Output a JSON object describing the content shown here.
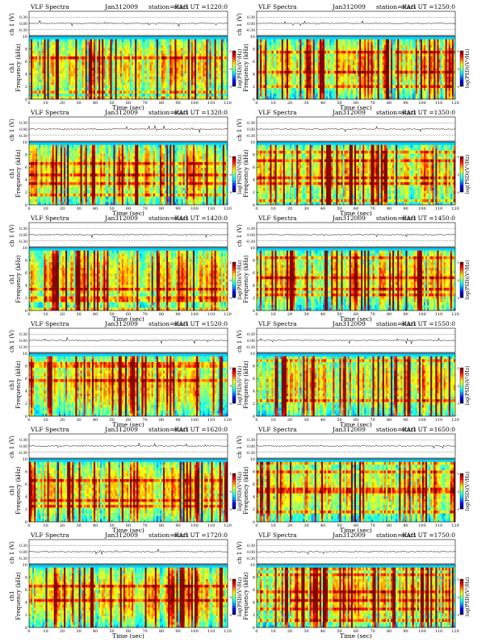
{
  "chart_data": [
    {
      "type": "heatmap",
      "title": "VLF Spectra",
      "date": "Jan312009",
      "station": "station=KAG",
      "start": "start UT =1220:0",
      "ch_label": "ch 1 (V)",
      "ch_ticks": [
        "0.30",
        "0.00",
        "-0.30"
      ],
      "ylabel": "Frequency (kHz)",
      "ch_name": "ch1",
      "yticks": [
        "0",
        "2",
        "4",
        "6",
        "8",
        "10"
      ],
      "xlabel": "Time (sec)",
      "xticks": [
        "0",
        "10",
        "20",
        "30",
        "40",
        "50",
        "60",
        "70",
        "80",
        "90",
        "100",
        "110",
        "120"
      ],
      "colorbar_label": "log(PSD)(V²/Hz)",
      "colorbar_ticks": [
        "-1",
        "-5",
        "-9"
      ]
    },
    {
      "type": "heatmap",
      "title": "VLF Spectra",
      "date": "Jan312009",
      "station": "station=KAG",
      "start": "start UT =1250:0",
      "ch_label": "ch 1 (V)",
      "ch_ticks": [
        "0.30",
        "0.00",
        "-0.30"
      ],
      "ylabel": "Frequency (kHz)",
      "ch_name": "",
      "yticks": [
        "0",
        "2",
        "4",
        "6",
        "8",
        "10"
      ],
      "xlabel": "Time (sec)",
      "xticks": [
        "0",
        "10",
        "20",
        "30",
        "40",
        "50",
        "60",
        "70",
        "80",
        "90",
        "100",
        "110",
        "120"
      ],
      "colorbar_label": "log(PSD)(V²/Hz)",
      "colorbar_ticks": [
        "-1",
        "-5",
        "-9"
      ]
    },
    {
      "type": "heatmap",
      "title": "VLF Spectra",
      "date": "Jan312009",
      "station": "station=KAG",
      "start": "start UT =1320:0",
      "ch_label": "ch 1 (V)",
      "ch_ticks": [
        "0.30",
        "0.00",
        "-0.30"
      ],
      "ylabel": "Frequency (kHz)",
      "ch_name": "ch1",
      "yticks": [
        "0",
        "2",
        "4",
        "6",
        "8",
        "10"
      ],
      "xlabel": "Time (sec)",
      "xticks": [
        "0",
        "10",
        "20",
        "30",
        "40",
        "50",
        "60",
        "70",
        "80",
        "90",
        "100",
        "110",
        "120"
      ],
      "colorbar_label": "log(PSD)(V²/Hz)",
      "colorbar_ticks": [
        "-1",
        "-5",
        "-9"
      ]
    },
    {
      "type": "heatmap",
      "title": "VLF Spectra",
      "date": "Jan312009",
      "station": "station=KAG",
      "start": "start UT =1350:0",
      "ch_label": "ch 1 (V)",
      "ch_ticks": [
        "0.30",
        "0.00",
        "-0.30"
      ],
      "ylabel": "Frequency (kHz)",
      "ch_name": "",
      "yticks": [
        "0",
        "2",
        "4",
        "6",
        "8",
        "10"
      ],
      "xlabel": "Time (sec)",
      "xticks": [
        "0",
        "10",
        "20",
        "30",
        "40",
        "50",
        "60",
        "70",
        "80",
        "90",
        "100",
        "110",
        "120"
      ],
      "colorbar_label": "log(PSD)(V²/Hz)",
      "colorbar_ticks": [
        "-1",
        "-5",
        "-9"
      ]
    },
    {
      "type": "heatmap",
      "title": "VLF Spectra",
      "date": "Jan312009",
      "station": "station=KAG",
      "start": "start UT =1420:0",
      "ch_label": "ch 1 (V)",
      "ch_ticks": [
        "0.30",
        "0.00",
        "-0.30"
      ],
      "ylabel": "Frequency (kHz)",
      "ch_name": "ch1",
      "yticks": [
        "0",
        "2",
        "4",
        "6",
        "8",
        "10"
      ],
      "xlabel": "Time (sec)",
      "xticks": [
        "0",
        "10",
        "20",
        "30",
        "40",
        "50",
        "60",
        "70",
        "80",
        "90",
        "100",
        "110",
        "120"
      ],
      "colorbar_label": "log(PSD)(V²/Hz)",
      "colorbar_ticks": [
        "-1",
        "-5",
        "-9"
      ]
    },
    {
      "type": "heatmap",
      "title": "VLF Spectra",
      "date": "Jan312009",
      "station": "station=KAG",
      "start": "start UT =1450:0",
      "ch_label": "ch 1 (V)",
      "ch_ticks": [
        "0.30",
        "0.00",
        "-0.30"
      ],
      "ylabel": "Frequency (kHz)",
      "ch_name": "",
      "yticks": [
        "0",
        "2",
        "4",
        "6",
        "8",
        "10"
      ],
      "xlabel": "Time (sec)",
      "xticks": [
        "0",
        "10",
        "20",
        "30",
        "40",
        "50",
        "60",
        "70",
        "80",
        "90",
        "100",
        "110",
        "120"
      ],
      "colorbar_label": "log(PSD)(V²/Hz)",
      "colorbar_ticks": [
        "-1",
        "-5",
        "-9"
      ]
    },
    {
      "type": "heatmap",
      "title": "VLF Spectra",
      "date": "Jan312009",
      "station": "station=KAG",
      "start": "start UT =1520:0",
      "ch_label": "ch 1 (V)",
      "ch_ticks": [
        "0.30",
        "0.00",
        "-0.30"
      ],
      "ylabel": "Frequency (kHz)",
      "ch_name": "ch1",
      "yticks": [
        "0",
        "2",
        "4",
        "6",
        "8",
        "10"
      ],
      "xlabel": "Time (sec)",
      "xticks": [
        "0",
        "10",
        "20",
        "30",
        "40",
        "50",
        "60",
        "70",
        "80",
        "90",
        "100",
        "110",
        "120"
      ],
      "colorbar_label": "log(PSD)(V²/Hz)",
      "colorbar_ticks": [
        "-1",
        "-5",
        "-9"
      ]
    },
    {
      "type": "heatmap",
      "title": "VLF Spectra",
      "date": "Jan312009",
      "station": "station=KAG",
      "start": "start UT =1550:0",
      "ch_label": "ch 1 (V)",
      "ch_ticks": [
        "0.30",
        "0.00",
        "-0.30"
      ],
      "ylabel": "Frequency (kHz)",
      "ch_name": "",
      "yticks": [
        "0",
        "2",
        "4",
        "6",
        "8",
        "10"
      ],
      "xlabel": "Time (sec)",
      "xticks": [
        "0",
        "10",
        "20",
        "30",
        "40",
        "50",
        "60",
        "70",
        "80",
        "90",
        "100",
        "110",
        "120"
      ],
      "colorbar_label": "log(PSD)(V²/Hz)",
      "colorbar_ticks": [
        "-1",
        "-5",
        "-9"
      ]
    },
    {
      "type": "heatmap",
      "title": "VLF Spectra",
      "date": "Jan312009",
      "station": "station=KAG",
      "start": "start UT =1620:0",
      "ch_label": "ch 1 (V)",
      "ch_ticks": [
        "0.30",
        "0.00",
        "-0.30"
      ],
      "ylabel": "Frequency (kHz)",
      "ch_name": "ch1",
      "yticks": [
        "0",
        "2",
        "4",
        "6",
        "8",
        "10"
      ],
      "xlabel": "Time (sec)",
      "xticks": [
        "0",
        "10",
        "20",
        "30",
        "40",
        "50",
        "60",
        "70",
        "80",
        "90",
        "100",
        "110",
        "120"
      ],
      "colorbar_label": "log(PSD)(V²/Hz)",
      "colorbar_ticks": [
        "-1",
        "-5",
        "-9"
      ]
    },
    {
      "type": "heatmap",
      "title": "VLF Spectra",
      "date": "Jan312009",
      "station": "station=KAG",
      "start": "start UT =1650:0",
      "ch_label": "ch 1 (V)",
      "ch_ticks": [
        "0.30",
        "0.00",
        "-0.30"
      ],
      "ylabel": "Frequency (kHz)",
      "ch_name": "",
      "yticks": [
        "0",
        "2",
        "4",
        "6",
        "8",
        "10"
      ],
      "xlabel": "Time (sec)",
      "xticks": [
        "0",
        "10",
        "20",
        "30",
        "40",
        "50",
        "60",
        "70",
        "80",
        "90",
        "100",
        "110",
        "120"
      ],
      "colorbar_label": "log(PSD)(V²/Hz)",
      "colorbar_ticks": [
        "-1",
        "-5",
        "-9"
      ]
    },
    {
      "type": "heatmap",
      "title": "VLF Spectra",
      "date": "Jan312009",
      "station": "station=KAG",
      "start": "start UT =1720:0",
      "ch_label": "ch 1 (V)",
      "ch_ticks": [
        "0.30",
        "0.00",
        "-0.30"
      ],
      "ylabel": "Frequency (kHz)",
      "ch_name": "ch1",
      "yticks": [
        "0",
        "2",
        "4",
        "6",
        "8",
        "10"
      ],
      "xlabel": "Time (sec)",
      "xticks": [
        "0",
        "10",
        "20",
        "30",
        "40",
        "50",
        "60",
        "70",
        "80",
        "90",
        "100",
        "110",
        "120"
      ],
      "colorbar_label": "log(PSD)(V²/Hz)",
      "colorbar_ticks": [
        "-1",
        "-5",
        "-9"
      ]
    },
    {
      "type": "heatmap",
      "title": "VLF Spectra",
      "date": "Jan312009",
      "station": "station=KAG",
      "start": "start UT =1750:0",
      "ch_label": "ch 1 (V)",
      "ch_ticks": [
        "0.30",
        "0.00",
        "-0.30"
      ],
      "ylabel": "Frequency (kHz)",
      "ch_name": "",
      "yticks": [
        "0",
        "2",
        "4",
        "6",
        "8",
        "10"
      ],
      "xlabel": "Time (sec)",
      "xticks": [
        "0",
        "10",
        "20",
        "30",
        "40",
        "50",
        "60",
        "70",
        "80",
        "90",
        "100",
        "110",
        "120"
      ],
      "colorbar_label": "log(PSD)(V²/Hz)",
      "colorbar_ticks": [
        "-1",
        "-5",
        "-9"
      ]
    }
  ]
}
